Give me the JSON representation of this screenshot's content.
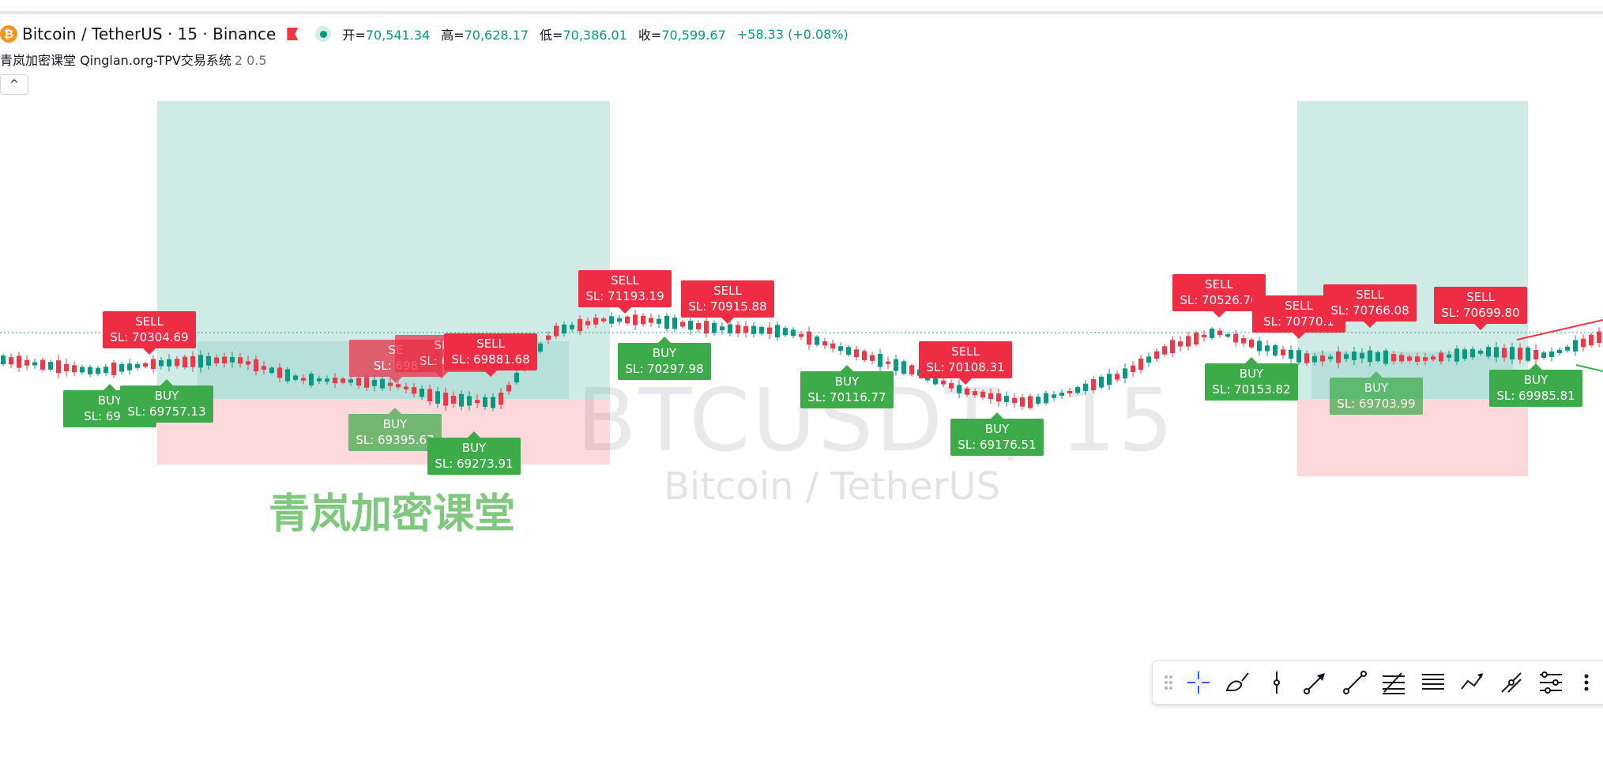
{
  "legend": {
    "coin_glyph": "₿",
    "symbol": "Bitcoin / TetherUS · 15 · Binance",
    "open_label": "开=",
    "open": "70,541.34",
    "high_label": "高=",
    "high": "70,628.17",
    "low_label": "低=",
    "low": "70,386.01",
    "close_label": "收=",
    "close": "70,599.67",
    "change": "+58.33 (+0.08%)",
    "up_color": "#089981"
  },
  "indicator": {
    "name": "青岚加密课堂 Qinglan.org-TPV交易系统",
    "params": "2 0.5"
  },
  "collapse_glyph": "^",
  "watermark": {
    "symbol": "BTCUSDT, 15",
    "name": "Bitcoin / TetherUS"
  },
  "brand": "青岚加密课堂",
  "signals": [
    {
      "type": "SELL",
      "line1": "SELL",
      "line2": "SL: 70304.69"
    },
    {
      "type": "BUY",
      "line1": "BUY",
      "line2": "SL: 6961"
    },
    {
      "type": "BUY",
      "line1": "BUY",
      "line2": "SL: 69757.13"
    },
    {
      "type": "SELL",
      "line1": "SE",
      "line2": "SL: 698"
    },
    {
      "type": "SELL",
      "line1": "SE",
      "line2": "SL: 698"
    },
    {
      "type": "SELL",
      "line1": "SELL",
      "line2": "SL: 69881.68"
    },
    {
      "type": "BUY",
      "line1": "BUY",
      "line2": "SL: 69395.67"
    },
    {
      "type": "BUY",
      "line1": "BUY",
      "line2": "SL: 69273.91"
    },
    {
      "type": "SELL",
      "line1": "SELL",
      "line2": "SL: 71193.19"
    },
    {
      "type": "BUY",
      "line1": "BUY",
      "line2": "SL: 70297.98"
    },
    {
      "type": "SELL",
      "line1": "SELL",
      "line2": "SL: 70915.88"
    },
    {
      "type": "BUY",
      "line1": "BUY",
      "line2": "SL: 70116.77"
    },
    {
      "type": "SELL",
      "line1": "SELL",
      "line2": "SL: 70108.31"
    },
    {
      "type": "BUY",
      "line1": "BUY",
      "line2": "SL: 69176.51"
    },
    {
      "type": "SELL",
      "line1": "SELL",
      "line2": "SL: 70526.76"
    },
    {
      "type": "SELL",
      "line1": "SELL",
      "line2": "SL: 70770.1"
    },
    {
      "type": "BUY",
      "line1": "BUY",
      "line2": "SL: 70153.82"
    },
    {
      "type": "SELL",
      "line1": "SELL",
      "line2": "SL: 70766.08"
    },
    {
      "type": "BUY",
      "line1": "BUY",
      "line2": "SL: 69703.99"
    },
    {
      "type": "SELL",
      "line1": "SELL",
      "line2": "SL: 70699.80"
    },
    {
      "type": "BUY",
      "line1": "BUY",
      "line2": "SL: 69985.81"
    }
  ],
  "toolbar": [
    "drag-handle",
    "crosshair-icon",
    "brush-icon",
    "vertical-line-icon",
    "arrow-line-icon",
    "trend-line-icon",
    "fib-retracement-icon",
    "parallel-channel-icon",
    "polyline-icon",
    "path-icon",
    "pitchfork-icon",
    "more-icon"
  ]
}
